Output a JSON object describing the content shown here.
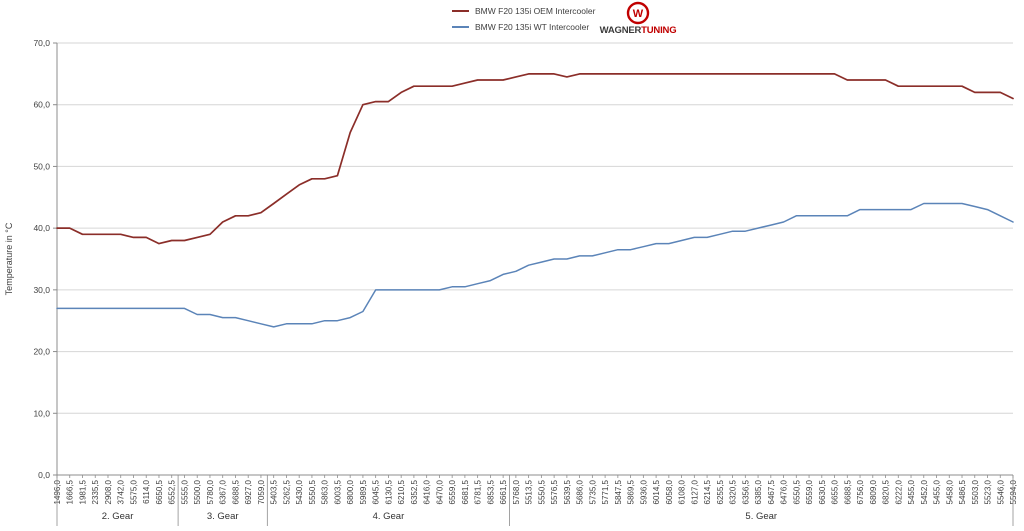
{
  "logo": {
    "brand_black": "WAGNER",
    "brand_red": "TUNING",
    "ring_color": "#c00000",
    "text_dark_color": "#3b3b3b",
    "text_red_color": "#c00000"
  },
  "chart_data": {
    "type": "line",
    "title": "",
    "xlabel": "",
    "ylabel": "Temperature in °C",
    "ylim": [
      0,
      70
    ],
    "grid": true,
    "legend_position": "top-center",
    "axis_color": "#8c8c8c",
    "grid_color": "#d6d6d6",
    "label_color": "#404040",
    "yticks": [
      {
        "value": 0,
        "label": "0,0"
      },
      {
        "value": 10,
        "label": "10,0"
      },
      {
        "value": 20,
        "label": "20,0"
      },
      {
        "value": 30,
        "label": "30,0"
      },
      {
        "value": 40,
        "label": "40,0"
      },
      {
        "value": 50,
        "label": "50,0"
      },
      {
        "value": 60,
        "label": "60,0"
      },
      {
        "value": 70,
        "label": "70,0"
      }
    ],
    "groups": [
      {
        "label": "2. Gear",
        "categories": [
          "1496,0",
          "1666,5",
          "1981,5",
          "2335,5",
          "2908,0",
          "3742,0",
          "5575,0",
          "6114,0",
          "6650,5",
          "6552,5"
        ]
      },
      {
        "label": "3. Gear",
        "categories": [
          "5555,0",
          "5500,0",
          "5780,0",
          "6367,0",
          "6688,5",
          "6927,0",
          "7059,0"
        ]
      },
      {
        "label": "4. Gear",
        "categories": [
          "5403,5",
          "5262,5",
          "5430,0",
          "5550,5",
          "5863,0",
          "6003,5",
          "6800,0",
          "5989,5",
          "6045,5",
          "6130,5",
          "6210,5",
          "6352,5",
          "6416,0",
          "6470,0",
          "6559,0",
          "6681,5",
          "6781,5",
          "6853,5",
          "6661,5"
        ]
      },
      {
        "label": "5. Gear",
        "categories": [
          "5768,0",
          "5513,5",
          "5550,5",
          "5576,5",
          "5639,5",
          "5686,0",
          "5735,0",
          "5771,5",
          "5847,5",
          "5869,5",
          "5936,0",
          "6014,5",
          "6058,0",
          "6108,0",
          "6127,0",
          "6214,5",
          "6255,5",
          "6320,5",
          "6356,5",
          "6385,0",
          "6467,5",
          "6476,0",
          "6550,5",
          "6559,0",
          "6630,5",
          "6655,0",
          "6688,5",
          "6756,0",
          "6809,0",
          "6820,5",
          "6222,0",
          "5455,0",
          "5452,0",
          "5455,0",
          "5458,0",
          "5486,5",
          "5503,0",
          "5523,0",
          "5546,0",
          "5594,0"
        ]
      }
    ],
    "series": [
      {
        "name": "BMW F20 135i OEM Intercooler",
        "color": "#8b2e29",
        "values": [
          40,
          40,
          39,
          39,
          39,
          39,
          38.5,
          38.5,
          37.5,
          38,
          38,
          38.5,
          39,
          41,
          42,
          42,
          42.5,
          44,
          45.5,
          47,
          48,
          48,
          48.5,
          55.5,
          60,
          60.5,
          60.5,
          62,
          63,
          63,
          63,
          63,
          63.5,
          64,
          64,
          64,
          64.5,
          65,
          65,
          65,
          64.5,
          65,
          65,
          65,
          65,
          65,
          65,
          65,
          65,
          65,
          65,
          65,
          65,
          65,
          65,
          65,
          65,
          65,
          65,
          65,
          65,
          65,
          64,
          64,
          64,
          64,
          63,
          63,
          63,
          63,
          63,
          63,
          62,
          62,
          62,
          61
        ]
      },
      {
        "name": "BMW F20 135i WT Intercooler",
        "color": "#5b84b8",
        "values": [
          27,
          27,
          27,
          27,
          27,
          27,
          27,
          27,
          27,
          27,
          27,
          26,
          26,
          25.5,
          25.5,
          25,
          24.5,
          24,
          24.5,
          24.5,
          24.5,
          25,
          25,
          25.5,
          26.5,
          30,
          30,
          30,
          30,
          30,
          30,
          30.5,
          30.5,
          31,
          31.5,
          32.5,
          33,
          34,
          34.5,
          35,
          35,
          35.5,
          35.5,
          36,
          36.5,
          36.5,
          37,
          37.5,
          37.5,
          38,
          38.5,
          38.5,
          39,
          39.5,
          39.5,
          40,
          40.5,
          41,
          42,
          42,
          42,
          42,
          42,
          43,
          43,
          43,
          43,
          43,
          44,
          44,
          44,
          44,
          43.5,
          43,
          42,
          41
        ]
      }
    ]
  }
}
